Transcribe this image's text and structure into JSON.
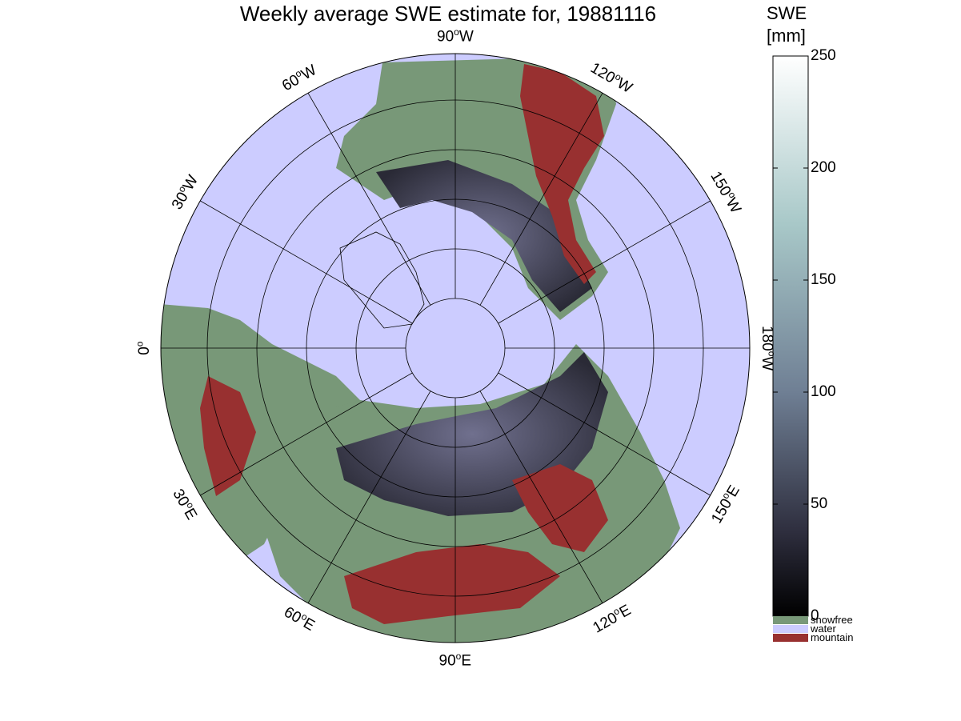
{
  "title": "Weekly average SWE estimate for, 19881116",
  "longitude_labels": [
    {
      "deg": "90",
      "hemi": "W"
    },
    {
      "deg": "120",
      "hemi": "W"
    },
    {
      "deg": "150",
      "hemi": "W"
    },
    {
      "deg": "180",
      "hemi": "W"
    },
    {
      "deg": "150",
      "hemi": "E"
    },
    {
      "deg": "120",
      "hemi": "E"
    },
    {
      "deg": "90",
      "hemi": "E"
    },
    {
      "deg": "60",
      "hemi": "E"
    },
    {
      "deg": "30",
      "hemi": "E"
    },
    {
      "deg": "0",
      "hemi": ""
    },
    {
      "deg": "30",
      "hemi": "W"
    },
    {
      "deg": "60",
      "hemi": "W"
    }
  ],
  "colorbar": {
    "title_line1": "SWE",
    "title_line2": "[mm]",
    "ticks": [
      "250",
      "200",
      "150",
      "100",
      "50",
      "0"
    ],
    "range": [
      0,
      250
    ]
  },
  "legend": [
    {
      "label": "snowfree",
      "color": "#789878"
    },
    {
      "label": "water",
      "color": "#ccccff"
    },
    {
      "label": "mountain",
      "color": "#983030"
    }
  ],
  "colors": {
    "water": "#ccccff",
    "snowfree": "#789878",
    "mountain": "#983030",
    "snow_low": "#26262f",
    "snow_mid": "#5a5a78"
  }
}
